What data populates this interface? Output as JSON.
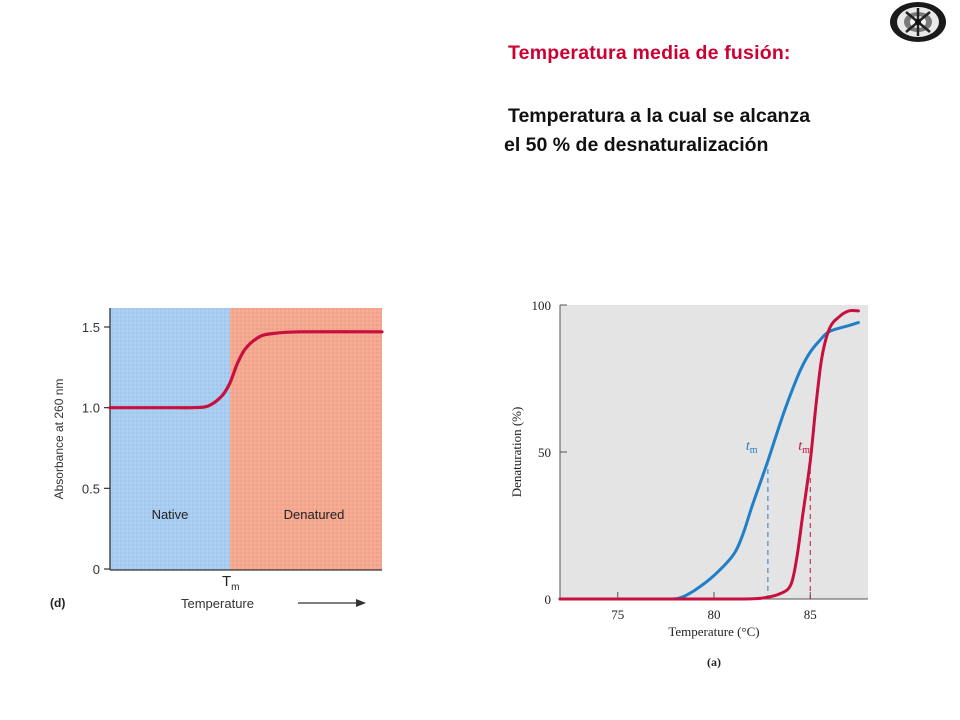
{
  "slide": {
    "heading": "Temperatura media de fusión:",
    "definition_line1": "Temperatura a la cual se alcanza",
    "definition_line2": "el  50 % de desnaturalización"
  },
  "colors": {
    "heading": "#cc0033",
    "native_region": "#a8cdf0",
    "denatured_region": "#f4a890",
    "curve_red": "#c8103e",
    "curve_blue": "#1f7fc8",
    "plot_gray": "#e4e4e4"
  },
  "chart_data": [
    {
      "type": "line",
      "panel_label": "(d)",
      "xlabel": "Temperature",
      "ylabel": "Absorbance at 260 nm",
      "ylim": [
        0,
        1.5
      ],
      "yticks": [
        "0",
        "0.5",
        "1.0",
        "1.5"
      ],
      "tm_label": "T",
      "tm_sub": "m",
      "regions": [
        "Native",
        "Denatured"
      ],
      "series": [
        {
          "x": [
            0,
            0.15,
            0.25,
            0.3,
            0.36,
            0.41,
            0.44,
            0.47,
            0.5,
            0.55,
            0.6,
            0.7,
            1.0
          ],
          "values": [
            1.0,
            1.0,
            1.0,
            1.0,
            1.01,
            1.07,
            1.15,
            1.28,
            1.37,
            1.44,
            1.46,
            1.47,
            1.47
          ]
        }
      ],
      "grid": false
    },
    {
      "type": "line",
      "panel_label": "(a)",
      "xlabel": "Temperature (°C)",
      "ylabel": "Denaturation (%)",
      "xlim": [
        72,
        88
      ],
      "ylim": [
        0,
        100
      ],
      "xticks": [
        75,
        80,
        85
      ],
      "yticks": [
        0,
        50,
        100
      ],
      "tm_label": "t",
      "tm_sub": "m",
      "series": [
        {
          "color": "#1f7fc8",
          "tm": 82.8,
          "x": [
            72,
            74,
            76,
            77.5,
            78.2,
            79,
            80,
            81,
            81.5,
            82,
            82.8,
            83.5,
            84,
            84.5,
            85,
            85.5,
            86,
            87,
            87.5
          ],
          "values": [
            0,
            0,
            0,
            0,
            0.3,
            3,
            8,
            15,
            22,
            32,
            47,
            61,
            70,
            78,
            84,
            88,
            91,
            93,
            94
          ]
        },
        {
          "color": "#c8103e",
          "tm": 85.0,
          "x": [
            72,
            76,
            79,
            81,
            82.5,
            83.5,
            84,
            84.3,
            84.6,
            85,
            85.3,
            85.6,
            86,
            86.5,
            87,
            87.5
          ],
          "values": [
            0,
            0,
            0,
            0,
            0.3,
            2,
            5,
            14,
            28,
            47,
            66,
            82,
            92,
            96,
            98,
            98
          ]
        }
      ],
      "grid": false
    }
  ]
}
